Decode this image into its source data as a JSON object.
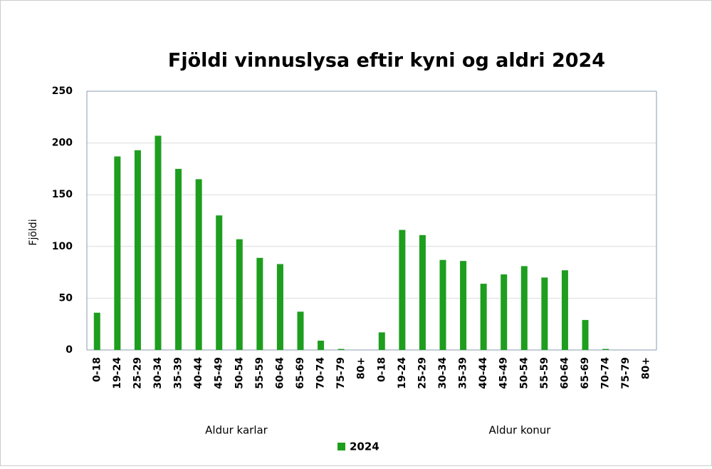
{
  "chart_data": {
    "type": "bar",
    "title": "Fjöldi vinnuslysa eftir kyni og aldri 2024",
    "y_label": "Fjöldi",
    "x_groups": [
      "Aldur karlar",
      "Aldur konur"
    ],
    "categories": [
      "0-18",
      "19-24",
      "25-29",
      "30-34",
      "35-39",
      "40-44",
      "45-49",
      "50-54",
      "55-59",
      "60-64",
      "65-69",
      "70-74",
      "75-79",
      "80+",
      "0-18",
      "19-24",
      "25-29",
      "30-34",
      "35-39",
      "40-44",
      "45-49",
      "50-54",
      "55-59",
      "60-64",
      "65-69",
      "70-74",
      "75-79",
      "80+"
    ],
    "series": [
      {
        "name": "2024",
        "color": "#1e9e1e",
        "values": [
          36,
          187,
          193,
          207,
          175,
          165,
          130,
          107,
          89,
          83,
          37,
          9,
          1,
          0,
          17,
          116,
          111,
          87,
          86,
          64,
          73,
          81,
          70,
          77,
          29,
          1,
          0,
          0
        ]
      }
    ],
    "ylim": [
      0,
      250
    ],
    "yticks": [
      0,
      50,
      100,
      150,
      200,
      250
    ],
    "grid": true
  }
}
